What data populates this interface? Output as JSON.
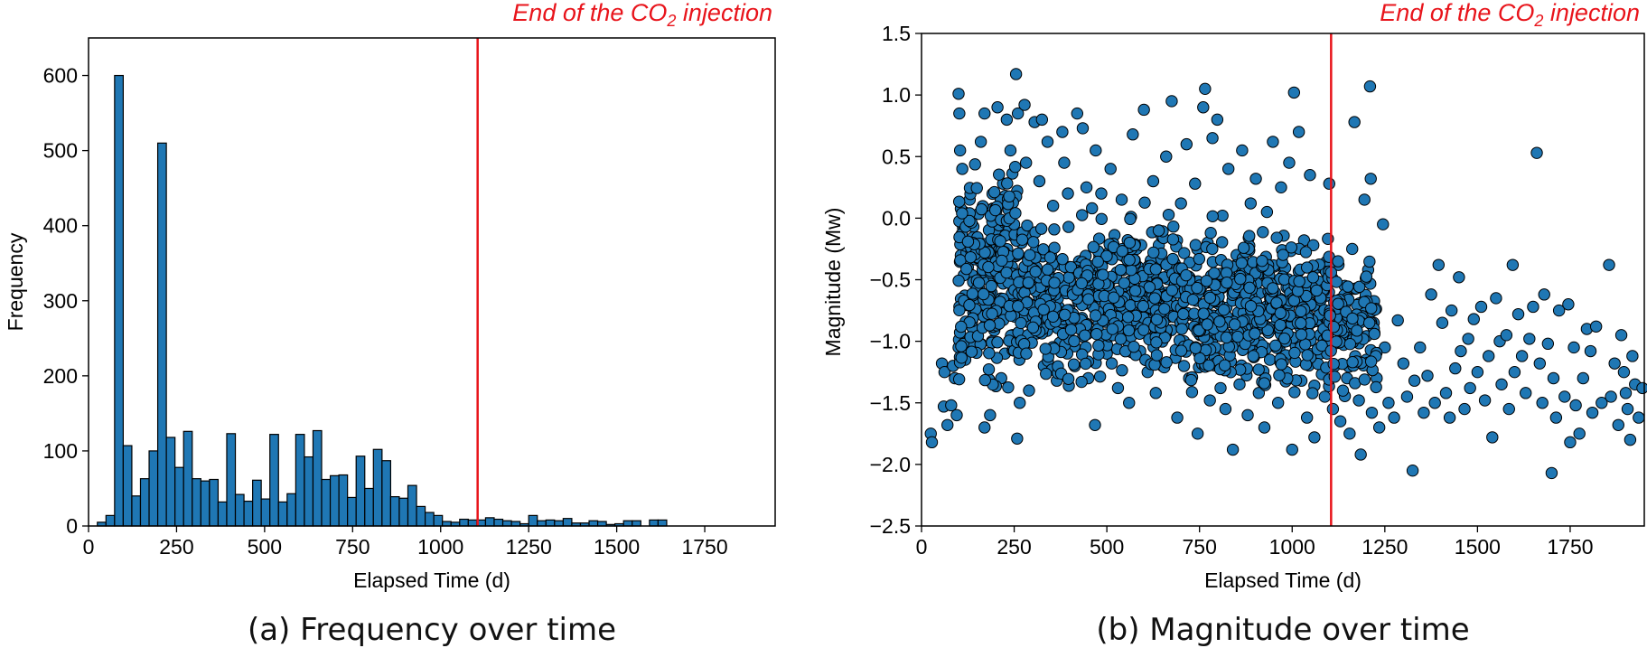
{
  "chart_data": [
    {
      "type": "bar",
      "subtype": "histogram",
      "caption": "(a) Frequency over time",
      "xlabel": "Elapsed Time (d)",
      "ylabel": "Frequency",
      "xlim": [
        0,
        1950
      ],
      "ylim": [
        0,
        650
      ],
      "xticks": [
        0,
        250,
        500,
        750,
        1000,
        1250,
        1500,
        1750
      ],
      "yticks": [
        0,
        100,
        200,
        300,
        400,
        500,
        600
      ],
      "bar_color": "#1f77b4",
      "bin_start": 25,
      "bin_width": 24.5,
      "values": [
        5,
        14,
        600,
        107,
        40,
        63,
        100,
        510,
        118,
        78,
        126,
        63,
        60,
        62,
        32,
        123,
        42,
        33,
        61,
        36,
        122,
        32,
        43,
        122,
        92,
        127,
        62,
        67,
        68,
        38,
        93,
        50,
        102,
        87,
        39,
        37,
        54,
        26,
        18,
        14,
        6,
        5,
        9,
        8,
        8,
        11,
        9,
        7,
        6,
        3,
        14,
        7,
        8,
        7,
        10,
        4,
        4,
        7,
        6,
        2,
        3,
        7,
        7,
        0,
        8,
        8
      ],
      "vline": {
        "x": 1105,
        "color": "#e8141b",
        "label": "End of the CO",
        "label_sub": "2",
        "label_end": " injection"
      }
    },
    {
      "type": "scatter",
      "caption": "(b) Magnitude over time",
      "xlabel": "Elapsed Time (d)",
      "ylabel": "Magnitude (Mw)",
      "xlim": [
        0,
        1950
      ],
      "ylim": [
        -2.5,
        1.5
      ],
      "xticks": [
        0,
        250,
        500,
        750,
        1000,
        1250,
        1500,
        1750
      ],
      "yticks": [
        -2.5,
        -2.0,
        -1.5,
        -1.0,
        -0.5,
        0.0,
        0.5,
        1.0,
        1.5
      ],
      "point_color": "#1f77b4",
      "points": [
        [
          25,
          -1.75
        ],
        [
          28,
          -1.82
        ],
        [
          55,
          -1.18
        ],
        [
          60,
          -1.53
        ],
        [
          62,
          -1.25
        ],
        [
          70,
          -1.68
        ],
        [
          80,
          -1.52
        ],
        [
          85,
          -1.2
        ],
        [
          90,
          -1.3
        ],
        [
          95,
          -1.6
        ],
        [
          100,
          -1.05
        ],
        [
          100,
          1.01
        ],
        [
          102,
          0.85
        ],
        [
          104,
          0.55
        ],
        [
          108,
          -0.3
        ],
        [
          110,
          0.4
        ],
        [
          115,
          0.05
        ],
        [
          118,
          -1.15
        ],
        [
          125,
          -0.4
        ],
        [
          130,
          0.15
        ],
        [
          140,
          -0.9
        ],
        [
          145,
          -0.25
        ],
        [
          150,
          -0.6
        ],
        [
          160,
          0.62
        ],
        [
          170,
          -1.7
        ],
        [
          170,
          0.85
        ],
        [
          180,
          -0.35
        ],
        [
          185,
          -1.6
        ],
        [
          190,
          -1.0
        ],
        [
          200,
          -0.75
        ],
        [
          205,
          0.9
        ],
        [
          210,
          -0.18
        ],
        [
          215,
          -1.3
        ],
        [
          220,
          0.28
        ],
        [
          225,
          -1.1
        ],
        [
          230,
          0.8
        ],
        [
          240,
          0.55
        ],
        [
          245,
          -0.95
        ],
        [
          255,
          1.17
        ],
        [
          258,
          -1.79
        ],
        [
          260,
          0.85
        ],
        [
          265,
          -1.5
        ],
        [
          270,
          -0.2
        ],
        [
          278,
          0.92
        ],
        [
          282,
          0.45
        ],
        [
          290,
          -1.4
        ],
        [
          300,
          -0.9
        ],
        [
          305,
          0.78
        ],
        [
          310,
          -0.4
        ],
        [
          318,
          0.3
        ],
        [
          325,
          0.8
        ],
        [
          330,
          -1.2
        ],
        [
          340,
          0.62
        ],
        [
          355,
          0.1
        ],
        [
          365,
          -1.32
        ],
        [
          370,
          -0.72
        ],
        [
          380,
          0.7
        ],
        [
          385,
          0.45
        ],
        [
          395,
          0.2
        ],
        [
          405,
          -0.58
        ],
        [
          410,
          -1.02
        ],
        [
          420,
          0.85
        ],
        [
          425,
          -0.35
        ],
        [
          435,
          0.73
        ],
        [
          440,
          -0.55
        ],
        [
          445,
          0.25
        ],
        [
          450,
          -1.3
        ],
        [
          460,
          0.08
        ],
        [
          468,
          -1.68
        ],
        [
          470,
          0.55
        ],
        [
          478,
          -0.85
        ],
        [
          485,
          0.2
        ],
        [
          490,
          -0.3
        ],
        [
          500,
          -1.1
        ],
        [
          510,
          0.4
        ],
        [
          520,
          -0.75
        ],
        [
          530,
          -1.38
        ],
        [
          540,
          0.15
        ],
        [
          550,
          -0.55
        ],
        [
          560,
          -1.5
        ],
        [
          570,
          0.68
        ],
        [
          580,
          -0.25
        ],
        [
          590,
          -1.08
        ],
        [
          600,
          0.88
        ],
        [
          610,
          -1.25
        ],
        [
          618,
          -0.62
        ],
        [
          625,
          0.3
        ],
        [
          632,
          -1.42
        ],
        [
          640,
          -0.1
        ],
        [
          650,
          -1.2
        ],
        [
          660,
          0.5
        ],
        [
          668,
          -0.8
        ],
        [
          675,
          0.95
        ],
        [
          680,
          -0.35
        ],
        [
          690,
          -1.62
        ],
        [
          700,
          0.12
        ],
        [
          708,
          -1.0
        ],
        [
          715,
          0.6
        ],
        [
          722,
          -1.3
        ],
        [
          730,
          -0.55
        ],
        [
          738,
          0.28
        ],
        [
          745,
          -1.75
        ],
        [
          752,
          -0.85
        ],
        [
          760,
          0.9
        ],
        [
          765,
          1.05
        ],
        [
          772,
          -0.2
        ],
        [
          778,
          -1.48
        ],
        [
          785,
          0.65
        ],
        [
          790,
          -0.68
        ],
        [
          798,
          0.8
        ],
        [
          805,
          -1.22
        ],
        [
          812,
          0.02
        ],
        [
          820,
          -1.55
        ],
        [
          828,
          0.4
        ],
        [
          835,
          -0.95
        ],
        [
          840,
          -1.88
        ],
        [
          850,
          -0.3
        ],
        [
          858,
          -1.35
        ],
        [
          865,
          0.55
        ],
        [
          872,
          -0.58
        ],
        [
          880,
          -1.6
        ],
        [
          888,
          0.12
        ],
        [
          895,
          -1.05
        ],
        [
          902,
          0.32
        ],
        [
          910,
          -1.42
        ],
        [
          918,
          -0.45
        ],
        [
          925,
          -1.7
        ],
        [
          932,
          0.05
        ],
        [
          940,
          -1.15
        ],
        [
          948,
          0.62
        ],
        [
          955,
          -0.72
        ],
        [
          962,
          -1.5
        ],
        [
          970,
          0.25
        ],
        [
          978,
          -0.92
        ],
        [
          985,
          -1.25
        ],
        [
          992,
          0.45
        ],
        [
          1000,
          -1.88
        ],
        [
          1005,
          1.02
        ],
        [
          1010,
          -0.52
        ],
        [
          1018,
          0.7
        ],
        [
          1025,
          -1.32
        ],
        [
          1032,
          -0.18
        ],
        [
          1040,
          -1.62
        ],
        [
          1048,
          0.35
        ],
        [
          1055,
          -0.82
        ],
        [
          1060,
          -1.78
        ],
        [
          1068,
          -0.4
        ],
        [
          1075,
          -1.1
        ],
        [
          1082,
          -0.62
        ],
        [
          1088,
          -1.45
        ],
        [
          1095,
          -0.9
        ],
        [
          1100,
          0.28
        ],
        [
          1110,
          -1.55
        ],
        [
          1115,
          -1.2
        ],
        [
          1120,
          -0.8
        ],
        [
          1125,
          -0.38
        ],
        [
          1130,
          -1.65
        ],
        [
          1135,
          -1.0
        ],
        [
          1142,
          -0.55
        ],
        [
          1148,
          -1.3
        ],
        [
          1155,
          -1.75
        ],
        [
          1162,
          -0.25
        ],
        [
          1168,
          0.78
        ],
        [
          1175,
          -0.95
        ],
        [
          1180,
          -1.48
        ],
        [
          1185,
          -1.92
        ],
        [
          1190,
          -0.68
        ],
        [
          1195,
          0.15
        ],
        [
          1200,
          -1.15
        ],
        [
          1205,
          -0.42
        ],
        [
          1210,
          1.07
        ],
        [
          1212,
          0.32
        ],
        [
          1215,
          -1.58
        ],
        [
          1220,
          -0.85
        ],
        [
          1228,
          -1.3
        ],
        [
          1235,
          -1.7
        ],
        [
          1245,
          -0.05
        ],
        [
          1250,
          -1.05
        ],
        [
          1260,
          -1.5
        ],
        [
          1275,
          -1.62
        ],
        [
          1285,
          -0.83
        ],
        [
          1300,
          -1.18
        ],
        [
          1310,
          -1.45
        ],
        [
          1325,
          -2.05
        ],
        [
          1330,
          -1.32
        ],
        [
          1345,
          -1.05
        ],
        [
          1355,
          -1.58
        ],
        [
          1365,
          -1.28
        ],
        [
          1375,
          -0.62
        ],
        [
          1385,
          -1.5
        ],
        [
          1395,
          -0.38
        ],
        [
          1405,
          -0.85
        ],
        [
          1415,
          -1.42
        ],
        [
          1425,
          -1.62
        ],
        [
          1430,
          -0.75
        ],
        [
          1440,
          -1.22
        ],
        [
          1450,
          -0.48
        ],
        [
          1455,
          -1.08
        ],
        [
          1465,
          -1.55
        ],
        [
          1475,
          -0.98
        ],
        [
          1480,
          -1.38
        ],
        [
          1490,
          -0.82
        ],
        [
          1500,
          -1.25
        ],
        [
          1510,
          -0.72
        ],
        [
          1520,
          -1.48
        ],
        [
          1530,
          -1.12
        ],
        [
          1540,
          -1.78
        ],
        [
          1550,
          -0.65
        ],
        [
          1560,
          -1.0
        ],
        [
          1565,
          -1.35
        ],
        [
          1578,
          -0.95
        ],
        [
          1585,
          -1.55
        ],
        [
          1595,
          -0.38
        ],
        [
          1600,
          -1.25
        ],
        [
          1610,
          -0.78
        ],
        [
          1620,
          -1.12
        ],
        [
          1630,
          -1.42
        ],
        [
          1640,
          -0.98
        ],
        [
          1650,
          -0.72
        ],
        [
          1660,
          0.53
        ],
        [
          1668,
          -1.18
        ],
        [
          1675,
          -1.5
        ],
        [
          1680,
          -0.62
        ],
        [
          1690,
          -1.02
        ],
        [
          1700,
          -2.07
        ],
        [
          1705,
          -1.3
        ],
        [
          1712,
          -1.62
        ],
        [
          1720,
          -0.75
        ],
        [
          1735,
          -1.45
        ],
        [
          1745,
          -0.7
        ],
        [
          1750,
          -1.82
        ],
        [
          1760,
          -1.05
        ],
        [
          1765,
          -1.52
        ],
        [
          1775,
          -1.75
        ],
        [
          1785,
          -1.3
        ],
        [
          1795,
          -0.9
        ],
        [
          1805,
          -1.08
        ],
        [
          1810,
          -1.58
        ],
        [
          1820,
          -0.88
        ],
        [
          1835,
          -1.5
        ],
        [
          1855,
          -0.38
        ],
        [
          1860,
          -1.45
        ],
        [
          1870,
          -1.18
        ],
        [
          1880,
          -1.68
        ],
        [
          1888,
          -0.95
        ],
        [
          1895,
          -1.25
        ],
        [
          1900,
          -1.42
        ],
        [
          1905,
          -1.55
        ],
        [
          1912,
          -1.8
        ],
        [
          1918,
          -1.12
        ],
        [
          1925,
          -1.35
        ],
        [
          1935,
          -1.62
        ],
        [
          1945,
          -1.38
        ]
      ],
      "vline": {
        "x": 1105,
        "color": "#e8141b",
        "label": "End of the CO",
        "label_sub": "2",
        "label_end": " injection"
      }
    }
  ]
}
